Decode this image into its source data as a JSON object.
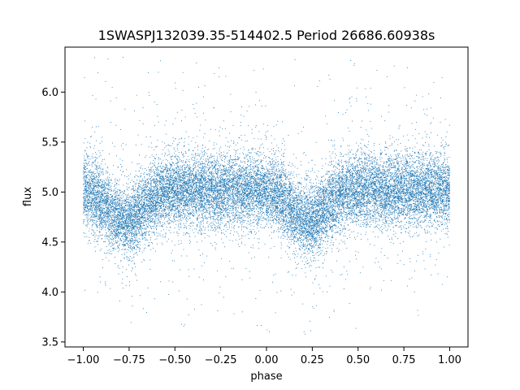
{
  "chart_data": {
    "type": "scatter",
    "title": "1SWASPJ132039.35-514402.5 Period 26686.60938s",
    "xlabel": "phase",
    "ylabel": "flux",
    "xlim": [
      -1.1,
      1.1
    ],
    "ylim": [
      3.45,
      6.45
    ],
    "xticks": [
      -1.0,
      -0.75,
      -0.5,
      -0.25,
      0.0,
      0.25,
      0.5,
      0.75,
      1.0
    ],
    "xtick_labels": [
      "−1.00",
      "−0.75",
      "−0.50",
      "−0.25",
      "0.00",
      "0.25",
      "0.50",
      "0.75",
      "1.00"
    ],
    "yticks": [
      3.5,
      4.0,
      4.5,
      5.0,
      5.5,
      6.0
    ],
    "ytick_labels": [
      "3.5",
      "4.0",
      "4.5",
      "5.0",
      "5.5",
      "6.0"
    ],
    "grid": false,
    "legend": "none",
    "marker_color": "#1f77b4",
    "phase_range": [
      -1.0,
      1.0
    ],
    "baseline_flux": 5.02,
    "minimum_flux_phases": [
      -0.77,
      0.23
    ],
    "minimum_flux": 4.7,
    "typical_scatter": 0.18,
    "point_count": 20000
  }
}
